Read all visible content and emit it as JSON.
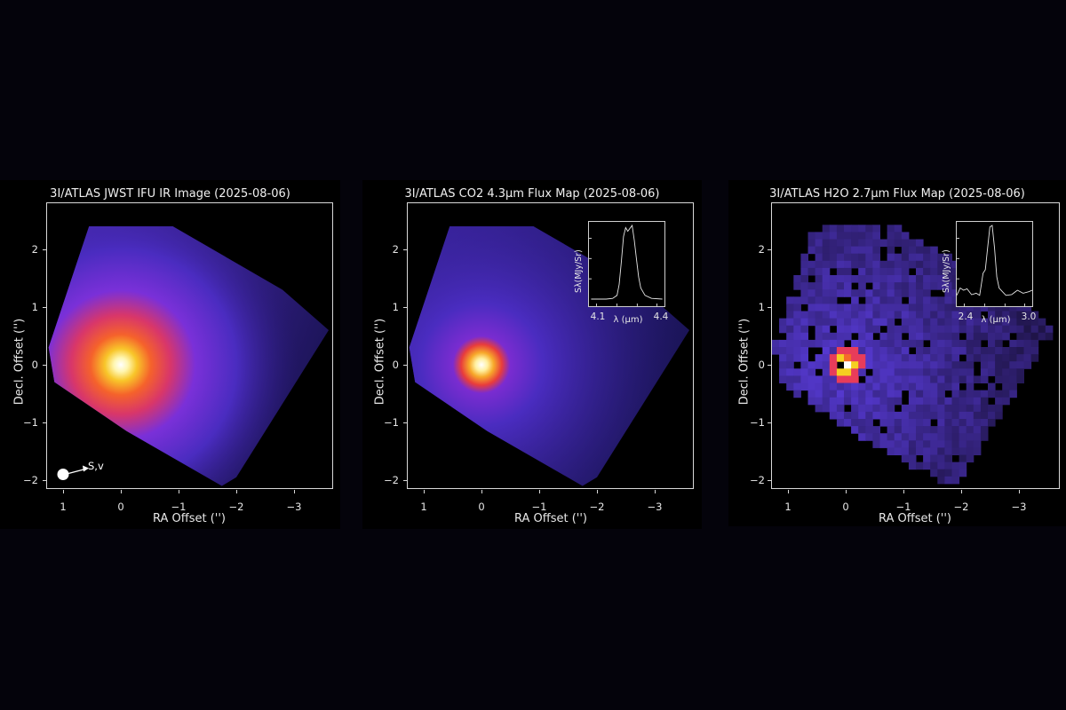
{
  "chart_data": [
    {
      "type": "heatmap",
      "title": "3I/ATLAS JWST IFU IR Image (2025-08-06)",
      "xlabel": "RA Offset ('')",
      "ylabel": "Decl. Offset ('')",
      "xticks": [
        "1",
        "0",
        "−1",
        "−2",
        "−3"
      ],
      "xtick_values": [
        1,
        0,
        -1,
        -2,
        -3
      ],
      "yticks": [
        "2",
        "1",
        "0",
        "−1",
        "−2"
      ],
      "ytick_values": [
        2,
        1,
        0,
        -1,
        -2
      ],
      "xlim": [
        1.3,
        -3.65
      ],
      "ylim": [
        -2.2,
        2.8
      ],
      "colormap": "plasma-like (dark blue/purple to red to yellow to white)",
      "peak_location": [
        0,
        0
      ],
      "footprint": "rotated square IFU field, spanning RA ~1.2 to -3.6, Dec ~-2.1 to 2.4",
      "annotation": {
        "label": "S,v",
        "marker": "white dot with arrow",
        "position": [
          1.0,
          -1.9
        ]
      }
    },
    {
      "type": "heatmap",
      "title": "3I/ATLAS CO2 4.3µm Flux Map (2025-08-06)",
      "xlabel": "RA Offset ('')",
      "ylabel": "Decl. Offset ('')",
      "xticks": [
        "1",
        "0",
        "−1",
        "−2",
        "−3"
      ],
      "yticks": [
        "2",
        "1",
        "0",
        "−1",
        "−2"
      ],
      "xlim": [
        1.3,
        -3.65
      ],
      "ylim": [
        -2.2,
        2.8
      ],
      "peak_location": [
        0,
        0
      ],
      "inset": {
        "type": "line",
        "xlabel": "λ (µm)",
        "ylabel": "Sλ(MJy/Sr)",
        "xticks": [
          "4.1",
          "4.4"
        ],
        "xlim": [
          4.07,
          4.42
        ],
        "description": "CO2 emission band, double-peaked near 4.24-4.27 µm",
        "x": [
          4.08,
          4.15,
          4.18,
          4.2,
          4.21,
          4.22,
          4.23,
          4.24,
          4.25,
          4.26,
          4.27,
          4.28,
          4.29,
          4.3,
          4.31,
          4.33,
          4.36,
          4.41
        ],
        "y": [
          0.0,
          0.0,
          0.01,
          0.05,
          0.2,
          0.5,
          0.85,
          0.97,
          0.92,
          0.96,
          1.0,
          0.8,
          0.55,
          0.3,
          0.15,
          0.05,
          0.01,
          0.0
        ]
      }
    },
    {
      "type": "heatmap",
      "title": "3I/ATLAS H2O 2.7µm Flux Map (2025-08-06)",
      "xlabel": "RA Offset ('')",
      "ylabel": "Decl. Offset ('')",
      "xticks": [
        "1",
        "0",
        "−1",
        "−2",
        "−3"
      ],
      "yticks": [
        "2",
        "1",
        "0",
        "−1",
        "−2"
      ],
      "xlim": [
        1.3,
        -3.65
      ],
      "ylim": [
        -2.2,
        2.8
      ],
      "peak_location": [
        0,
        0
      ],
      "noise": "pixelated, noisy",
      "inset": {
        "type": "line",
        "xlabel": "λ (µm)",
        "ylabel": "Sλ(MJy/Sr)",
        "xticks": [
          "2.4",
          "3.0"
        ],
        "xlim": [
          2.37,
          3.03
        ],
        "description": "H2O emission peak near 2.7 µm",
        "x": [
          2.37,
          2.4,
          2.43,
          2.46,
          2.5,
          2.54,
          2.57,
          2.6,
          2.62,
          2.64,
          2.66,
          2.68,
          2.7,
          2.72,
          2.74,
          2.77,
          2.8,
          2.85,
          2.9,
          2.95,
          3.0,
          3.03
        ],
        "y": [
          0.05,
          0.15,
          0.12,
          0.14,
          0.06,
          0.08,
          0.05,
          0.35,
          0.4,
          0.7,
          0.98,
          1.0,
          0.7,
          0.3,
          0.15,
          0.1,
          0.05,
          0.06,
          0.12,
          0.08,
          0.1,
          0.12
        ]
      }
    }
  ],
  "panels": [
    {
      "title": "3I/ATLAS JWST IFU IR Image (2025-08-06)",
      "xlabel": "RA Offset ('')",
      "ylabel": "Decl. Offset ('')",
      "sv_label": "S,v"
    },
    {
      "title": "3I/ATLAS CO2 4.3µm Flux Map (2025-08-06)",
      "xlabel": "RA Offset ('')",
      "ylabel": "Decl. Offset ('')",
      "inset_xticks": [
        "4.1",
        "4.4"
      ],
      "inset_xlabel": "λ (µm)",
      "inset_ylabel": "Sλ(MJy/Sr)"
    },
    {
      "title": "3I/ATLAS H2O 2.7µm Flux Map (2025-08-06)",
      "xlabel": "RA Offset ('')",
      "ylabel": "Decl. Offset ('')",
      "inset_xticks": [
        "2.4",
        "3.0"
      ],
      "inset_xlabel": "λ (µm)",
      "inset_ylabel": "Sλ(MJy/Sr)"
    }
  ],
  "axis_ticks": {
    "x": [
      "1",
      "0",
      "−1",
      "−2",
      "−3"
    ],
    "y": [
      "2",
      "1",
      "0",
      "−1",
      "−2"
    ]
  },
  "colors": {
    "page_bg": "#04030b",
    "panel_bg": "#000000",
    "frame": "#d9d9d9",
    "core_white": "#fffbe0",
    "core_yellow": "#f5d020",
    "core_orange": "#f56b2a",
    "core_red": "#e83c3c",
    "halo_purple": "#6a2fd8",
    "field_blue": "#4a2cc0",
    "field_dark": "#1a1250"
  }
}
